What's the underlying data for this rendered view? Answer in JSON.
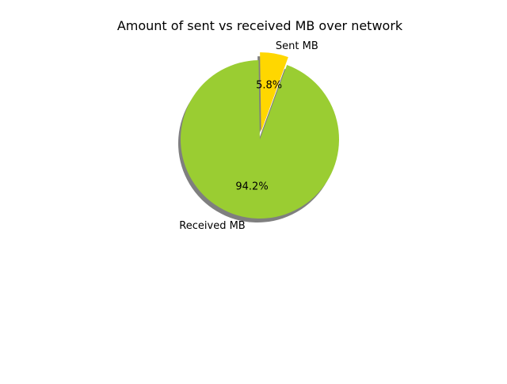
{
  "chart_data": {
    "type": "pie",
    "title": "Amount of sent vs received MB over network",
    "slices": [
      {
        "label": "Sent MB",
        "value": 5.8,
        "pct_label": "5.8%",
        "color": "#FFD700",
        "exploded": true
      },
      {
        "label": "Received MB",
        "value": 94.2,
        "pct_label": "94.2%",
        "color": "#9ACD32",
        "exploded": false
      }
    ],
    "start_angle_deg": 70,
    "shadow": true
  }
}
